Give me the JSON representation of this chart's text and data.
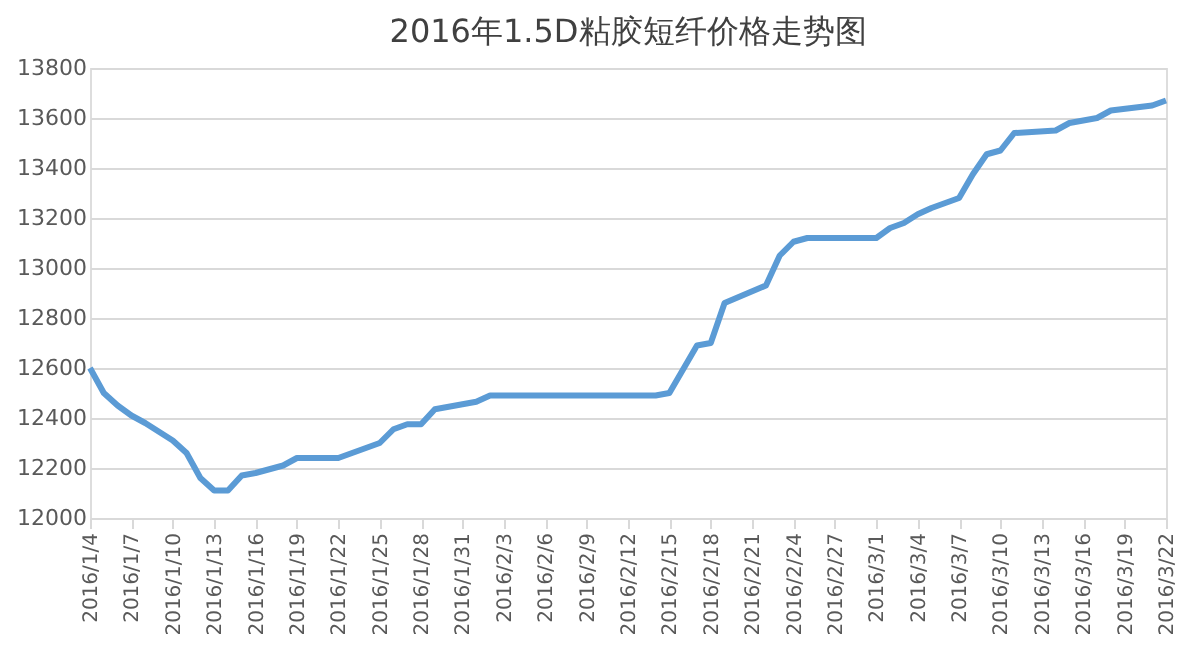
{
  "chart_data": {
    "type": "line",
    "title": "2016年1.5D粘胶短纤价格走势图",
    "x": [
      "2016-01-04",
      "2016-01-05",
      "2016-01-06",
      "2016-01-07",
      "2016-01-08",
      "2016-01-10",
      "2016-01-11",
      "2016-01-12",
      "2016-01-13",
      "2016-01-14",
      "2016-01-15",
      "2016-01-16",
      "2016-01-18",
      "2016-01-19",
      "2016-01-22",
      "2016-01-25",
      "2016-01-26",
      "2016-01-27",
      "2016-01-28",
      "2016-01-29",
      "2016-02-01",
      "2016-02-02",
      "2016-02-14",
      "2016-02-15",
      "2016-02-17",
      "2016-02-18",
      "2016-02-19",
      "2016-02-22",
      "2016-02-23",
      "2016-02-24",
      "2016-02-25",
      "2016-03-01",
      "2016-03-02",
      "2016-03-03",
      "2016-03-04",
      "2016-03-05",
      "2016-03-07",
      "2016-03-08",
      "2016-03-09",
      "2016-03-10",
      "2016-03-11",
      "2016-03-14",
      "2016-03-15",
      "2016-03-17",
      "2016-03-18",
      "2016-03-21",
      "2016-03-22"
    ],
    "series": [
      {
        "color": "#5b9bd5",
        "values": [
          12600,
          12500,
          12450,
          12410,
          12380,
          12310,
          12260,
          12160,
          12110,
          12110,
          12170,
          12180,
          12210,
          12240,
          12240,
          12300,
          12355,
          12375,
          12375,
          12435,
          12465,
          12490,
          12490,
          12500,
          12690,
          12700,
          12860,
          12930,
          13050,
          13105,
          13120,
          13120,
          13160,
          13180,
          13215,
          13240,
          13280,
          13375,
          13455,
          13470,
          13540,
          13550,
          13580,
          13600,
          13630,
          13650,
          13670
        ]
      }
    ],
    "xlim": [
      "2016-01-04",
      "2016-03-22"
    ],
    "xticks": [
      {
        "value": "2016-01-04",
        "label": "2016/1/4"
      },
      {
        "value": "2016-01-07",
        "label": "2016/1/7"
      },
      {
        "value": "2016-01-10",
        "label": "2016/1/10"
      },
      {
        "value": "2016-01-13",
        "label": "2016/1/13"
      },
      {
        "value": "2016-01-16",
        "label": "2016/1/16"
      },
      {
        "value": "2016-01-19",
        "label": "2016/1/19"
      },
      {
        "value": "2016-01-22",
        "label": "2016/1/22"
      },
      {
        "value": "2016-01-25",
        "label": "2016/1/25"
      },
      {
        "value": "2016-01-28",
        "label": "2016/1/28"
      },
      {
        "value": "2016-01-31",
        "label": "2016/1/31"
      },
      {
        "value": "2016-02-03",
        "label": "2016/2/3"
      },
      {
        "value": "2016-02-06",
        "label": "2016/2/6"
      },
      {
        "value": "2016-02-09",
        "label": "2016/2/9"
      },
      {
        "value": "2016-02-12",
        "label": "2016/2/12"
      },
      {
        "value": "2016-02-15",
        "label": "2016/2/15"
      },
      {
        "value": "2016-02-18",
        "label": "2016/2/18"
      },
      {
        "value": "2016-02-21",
        "label": "2016/2/21"
      },
      {
        "value": "2016-02-24",
        "label": "2016/2/24"
      },
      {
        "value": "2016-02-27",
        "label": "2016/2/27"
      },
      {
        "value": "2016-03-01",
        "label": "2016/3/1"
      },
      {
        "value": "2016-03-04",
        "label": "2016/3/4"
      },
      {
        "value": "2016-03-07",
        "label": "2016/3/7"
      },
      {
        "value": "2016-03-10",
        "label": "2016/3/10"
      },
      {
        "value": "2016-03-13",
        "label": "2016/3/13"
      },
      {
        "value": "2016-03-16",
        "label": "2016/3/16"
      },
      {
        "value": "2016-03-19",
        "label": "2016/3/19"
      },
      {
        "value": "2016-03-22",
        "label": "2016/3/22"
      }
    ],
    "ylim": [
      12000,
      13800
    ],
    "yticks": [
      12000,
      12200,
      12400,
      12600,
      12800,
      13000,
      13200,
      13400,
      13600,
      13800
    ],
    "grid": "y",
    "legend": false,
    "marker": "none",
    "line_style": "solid"
  }
}
